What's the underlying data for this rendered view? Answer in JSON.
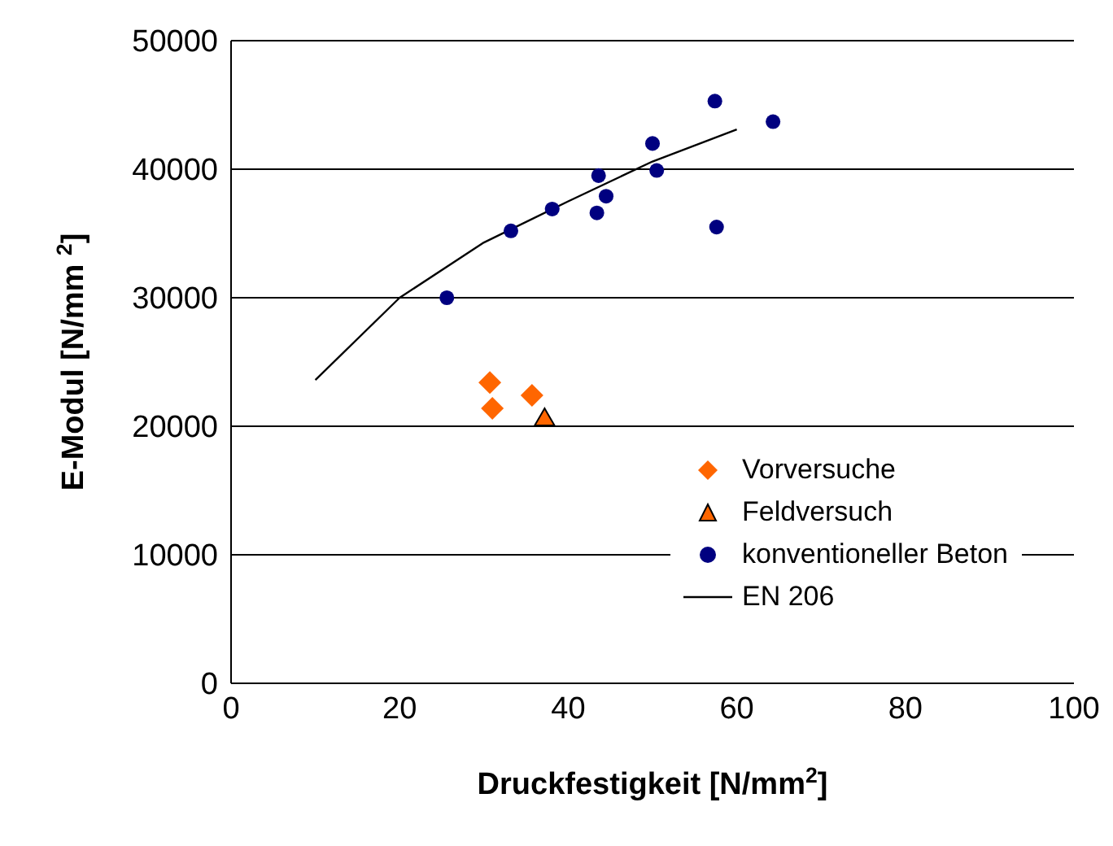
{
  "chart_data": {
    "type": "scatter",
    "xlabel": "Druckfestigkeit [N/mm$^{2}$]",
    "ylabel": "E-Modul [N/mm $^{2}$]",
    "xlim": [
      0,
      100
    ],
    "xticks": [
      0,
      20,
      40,
      60,
      80,
      100
    ],
    "ylim": [
      0,
      50000
    ],
    "yticks": [
      0,
      10000,
      20000,
      30000,
      40000,
      50000
    ],
    "grid": "y",
    "legend": "bottom right",
    "series": [
      {
        "name": "Vorversuche",
        "marker": "diamond",
        "color": "#ff6600",
        "x": [
          30.7,
          31.0,
          35.7
        ],
        "values": [
          23400,
          21400,
          22400
        ]
      },
      {
        "name": "Feldversuch",
        "marker": "triangle",
        "color": "#ff6600",
        "x": [
          37.2
        ],
        "values": [
          20500
        ]
      },
      {
        "name": "konventioneller Beton",
        "marker": "circle",
        "color": "#000080",
        "x": [
          25.6,
          33.2,
          38.1,
          43.4,
          43.6,
          44.5,
          50.0,
          50.5,
          57.4,
          57.6,
          64.3
        ],
        "values": [
          30000,
          35200,
          36900,
          36600,
          39500,
          37900,
          42000,
          39900,
          45300,
          35500,
          43700
        ]
      },
      {
        "name": "EN 206",
        "type": "line",
        "marker": "none",
        "color": "#000000",
        "x": [
          10,
          20,
          30,
          40,
          50,
          60
        ],
        "values": [
          23600,
          30000,
          34300,
          37500,
          40600,
          43100
        ]
      }
    ]
  }
}
